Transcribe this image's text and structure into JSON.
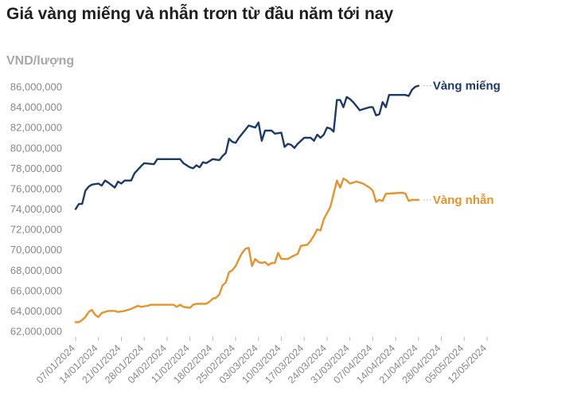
{
  "chart_data": {
    "type": "line",
    "title": "Giá vàng miếng và nhẫn trơn từ đầu năm tới nay",
    "ylabel": "VND/lượng",
    "xlabel": "",
    "ylim": [
      62000000,
      86000000
    ],
    "yticks": [
      62000000,
      64000000,
      66000000,
      68000000,
      70000000,
      72000000,
      74000000,
      76000000,
      78000000,
      80000000,
      82000000,
      84000000,
      86000000
    ],
    "ytick_labels": [
      "62,000,000",
      "64,000,000",
      "66,000,000",
      "68,000,000",
      "70,000,000",
      "72,000,000",
      "74,000,000",
      "76,000,000",
      "78,000,000",
      "80,000,000",
      "82,000,000",
      "84,000,000",
      "86,000,000"
    ],
    "xlim": [
      "2024-01-07",
      "2024-05-12"
    ],
    "xticks": [
      "2024-01-07",
      "2024-01-14",
      "2024-01-21",
      "2024-01-28",
      "2024-02-04",
      "2024-02-11",
      "2024-02-18",
      "2024-02-25",
      "2024-03-03",
      "2024-03-10",
      "2024-03-17",
      "2024-03-24",
      "2024-03-31",
      "2024-04-07",
      "2024-04-14",
      "2024-04-21",
      "2024-04-28",
      "2024-05-05",
      "2024-05-12"
    ],
    "xtick_labels": [
      "07/01/2024",
      "14/01/2024",
      "21/01/2024",
      "28/01/2024",
      "04/02/2024",
      "11/02/2024",
      "18/02/2024",
      "25/02/2024",
      "03/03/2024",
      "10/03/2024",
      "17/03/2024",
      "24/03/2024",
      "31/03/2024",
      "07/04/2024",
      "14/04/2024",
      "21/04/2024",
      "28/04/2024",
      "05/05/2024",
      "12/05/2024"
    ],
    "grid": false,
    "legend": "direct labels at line ends",
    "series": [
      {
        "name": "Vàng miếng",
        "color": "#1b3a6b",
        "points": [
          [
            "2024-01-07",
            74000000
          ],
          [
            "2024-01-08",
            74500000
          ],
          [
            "2024-01-09",
            74500000
          ],
          [
            "2024-01-10",
            75800000
          ],
          [
            "2024-01-11",
            76200000
          ],
          [
            "2024-01-12",
            76400000
          ],
          [
            "2024-01-14",
            76500000
          ],
          [
            "2024-01-15",
            76300000
          ],
          [
            "2024-01-16",
            76800000
          ],
          [
            "2024-01-17",
            76600000
          ],
          [
            "2024-01-19",
            76100000
          ],
          [
            "2024-01-20",
            76700000
          ],
          [
            "2024-01-21",
            76500000
          ],
          [
            "2024-01-22",
            76800000
          ],
          [
            "2024-01-24",
            76800000
          ],
          [
            "2024-01-25",
            77500000
          ],
          [
            "2024-01-27",
            78200000
          ],
          [
            "2024-01-28",
            78500000
          ],
          [
            "2024-01-31",
            78400000
          ],
          [
            "2024-02-01",
            78900000
          ],
          [
            "2024-02-06",
            78900000
          ],
          [
            "2024-02-08",
            78900000
          ],
          [
            "2024-02-09",
            78500000
          ],
          [
            "2024-02-11",
            78100000
          ],
          [
            "2024-02-12",
            78000000
          ],
          [
            "2024-02-13",
            78300000
          ],
          [
            "2024-02-14",
            78100000
          ],
          [
            "2024-02-15",
            78600000
          ],
          [
            "2024-02-16",
            78500000
          ],
          [
            "2024-02-18",
            78900000
          ],
          [
            "2024-02-20",
            78800000
          ],
          [
            "2024-02-21",
            79200000
          ],
          [
            "2024-02-22",
            79500000
          ],
          [
            "2024-02-23",
            80900000
          ],
          [
            "2024-02-24",
            80600000
          ],
          [
            "2024-02-25",
            80500000
          ],
          [
            "2024-02-26",
            81000000
          ],
          [
            "2024-02-28",
            81800000
          ],
          [
            "2024-02-29",
            82200000
          ],
          [
            "2024-03-02",
            82000000
          ],
          [
            "2024-03-03",
            82500000
          ],
          [
            "2024-03-04",
            80700000
          ],
          [
            "2024-03-05",
            81700000
          ],
          [
            "2024-03-07",
            81700000
          ],
          [
            "2024-03-08",
            81400000
          ],
          [
            "2024-03-10",
            81500000
          ],
          [
            "2024-03-11",
            80100000
          ],
          [
            "2024-03-12",
            80400000
          ],
          [
            "2024-03-13",
            80300000
          ],
          [
            "2024-03-14",
            80000000
          ],
          [
            "2024-03-15",
            80400000
          ],
          [
            "2024-03-17",
            81000000
          ],
          [
            "2024-03-19",
            81000000
          ],
          [
            "2024-03-20",
            80700000
          ],
          [
            "2024-03-21",
            81300000
          ],
          [
            "2024-03-22",
            81000000
          ],
          [
            "2024-03-23",
            81300000
          ],
          [
            "2024-03-24",
            82000000
          ],
          [
            "2024-03-25",
            81900000
          ],
          [
            "2024-03-26",
            81600000
          ],
          [
            "2024-03-27",
            84700000
          ],
          [
            "2024-03-28",
            84700000
          ],
          [
            "2024-03-29",
            84000000
          ],
          [
            "2024-03-30",
            85000000
          ],
          [
            "2024-03-31",
            84800000
          ],
          [
            "2024-04-01",
            84500000
          ],
          [
            "2024-04-03",
            83700000
          ],
          [
            "2024-04-06",
            84000000
          ],
          [
            "2024-04-07",
            84000000
          ],
          [
            "2024-04-08",
            83200000
          ],
          [
            "2024-04-09",
            83300000
          ],
          [
            "2024-04-10",
            84500000
          ],
          [
            "2024-04-11",
            84000000
          ],
          [
            "2024-04-12",
            85200000
          ],
          [
            "2024-04-17",
            85200000
          ],
          [
            "2024-04-18",
            85100000
          ],
          [
            "2024-04-19",
            85700000
          ],
          [
            "2024-04-20",
            86000000
          ],
          [
            "2024-04-21",
            86100000
          ]
        ]
      },
      {
        "name": "Vàng nhẫn",
        "color": "#e8922b",
        "points": [
          [
            "2024-01-07",
            62900000
          ],
          [
            "2024-01-08",
            62900000
          ],
          [
            "2024-01-09",
            63100000
          ],
          [
            "2024-01-10",
            63400000
          ],
          [
            "2024-01-11",
            63900000
          ],
          [
            "2024-01-12",
            64100000
          ],
          [
            "2024-01-13",
            63600000
          ],
          [
            "2024-01-14",
            63400000
          ],
          [
            "2024-01-15",
            63800000
          ],
          [
            "2024-01-17",
            64000000
          ],
          [
            "2024-01-19",
            64000000
          ],
          [
            "2024-01-20",
            63900000
          ],
          [
            "2024-01-22",
            64000000
          ],
          [
            "2024-01-24",
            64200000
          ],
          [
            "2024-01-26",
            64500000
          ],
          [
            "2024-01-27",
            64400000
          ],
          [
            "2024-01-29",
            64500000
          ],
          [
            "2024-01-30",
            64600000
          ],
          [
            "2024-02-06",
            64600000
          ],
          [
            "2024-02-07",
            64400000
          ],
          [
            "2024-02-08",
            64600000
          ],
          [
            "2024-02-09",
            64400000
          ],
          [
            "2024-02-11",
            64300000
          ],
          [
            "2024-02-12",
            64600000
          ],
          [
            "2024-02-13",
            64700000
          ],
          [
            "2024-02-16",
            64700000
          ],
          [
            "2024-02-17",
            64900000
          ],
          [
            "2024-02-18",
            65200000
          ],
          [
            "2024-02-19",
            65300000
          ],
          [
            "2024-02-20",
            65600000
          ],
          [
            "2024-02-21",
            66500000
          ],
          [
            "2024-02-22",
            66800000
          ],
          [
            "2024-02-23",
            67800000
          ],
          [
            "2024-02-24",
            68000000
          ],
          [
            "2024-02-25",
            68400000
          ],
          [
            "2024-02-26",
            69100000
          ],
          [
            "2024-02-27",
            69700000
          ],
          [
            "2024-02-28",
            70100000
          ],
          [
            "2024-02-29",
            70200000
          ],
          [
            "2024-03-01",
            68400000
          ],
          [
            "2024-03-02",
            69100000
          ],
          [
            "2024-03-03",
            68800000
          ],
          [
            "2024-03-04",
            68700000
          ],
          [
            "2024-03-05",
            68800000
          ],
          [
            "2024-03-06",
            68500000
          ],
          [
            "2024-03-07",
            68700000
          ],
          [
            "2024-03-08",
            68700000
          ],
          [
            "2024-03-09",
            69700000
          ],
          [
            "2024-03-10",
            69100000
          ],
          [
            "2024-03-12",
            69100000
          ],
          [
            "2024-03-13",
            69300000
          ],
          [
            "2024-03-15",
            69600000
          ],
          [
            "2024-03-16",
            70400000
          ],
          [
            "2024-03-18",
            70500000
          ],
          [
            "2024-03-19",
            70900000
          ],
          [
            "2024-03-20",
            71400000
          ],
          [
            "2024-03-21",
            72000000
          ],
          [
            "2024-03-22",
            71900000
          ],
          [
            "2024-03-23",
            73000000
          ],
          [
            "2024-03-25",
            74200000
          ],
          [
            "2024-03-26",
            75500000
          ],
          [
            "2024-03-27",
            76800000
          ],
          [
            "2024-03-28",
            76100000
          ],
          [
            "2024-03-29",
            77000000
          ],
          [
            "2024-03-30",
            76800000
          ],
          [
            "2024-03-31",
            76500000
          ],
          [
            "2024-04-02",
            76700000
          ],
          [
            "2024-04-04",
            76500000
          ],
          [
            "2024-04-06",
            76100000
          ],
          [
            "2024-04-07",
            75800000
          ],
          [
            "2024-04-08",
            74700000
          ],
          [
            "2024-04-09",
            74900000
          ],
          [
            "2024-04-10",
            74800000
          ],
          [
            "2024-04-11",
            75500000
          ],
          [
            "2024-04-16",
            75600000
          ],
          [
            "2024-04-17",
            75500000
          ],
          [
            "2024-04-18",
            74800000
          ],
          [
            "2024-04-19",
            74900000
          ],
          [
            "2024-04-21",
            74900000
          ]
        ]
      }
    ]
  }
}
